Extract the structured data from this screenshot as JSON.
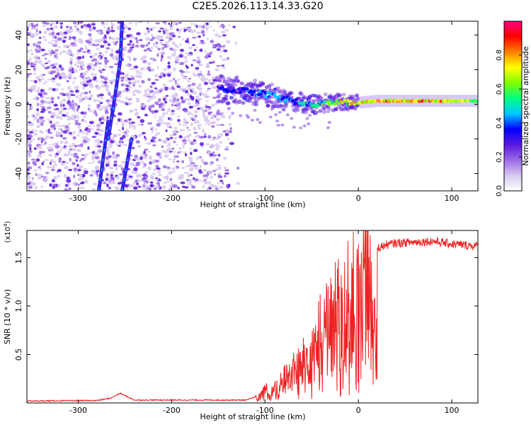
{
  "title": "C2E5.2026.113.14.33.G20",
  "chart_data": [
    {
      "type": "heatmap",
      "xlabel": "Height of straight line (km)",
      "ylabel": "Frequency (Hz)",
      "xlim": [
        -355,
        128
      ],
      "ylim": [
        -50,
        48
      ],
      "x_ticks": [
        -300,
        -200,
        -100,
        0,
        100
      ],
      "y_ticks": [
        -40,
        -20,
        0,
        20,
        40
      ],
      "colorbar": {
        "label": "Normalized spectral amplitude",
        "range": [
          0,
          1
        ],
        "ticks": [
          0.0,
          0.2,
          0.4,
          0.6,
          0.8
        ],
        "tick_labels": [
          "0.0",
          "0.2",
          "0.4",
          "0.6",
          "0.8"
        ],
        "colors": [
          "#ffffff",
          "#d8c8f0",
          "#9b6ae8",
          "#5a18e0",
          "#0000ff",
          "#00c8ff",
          "#00ff80",
          "#80ff00",
          "#ffff00",
          "#ff8000",
          "#ff0000",
          "#ff0080"
        ]
      },
      "features": [
        {
          "name": "noise-scatter",
          "x_range": [
            -355,
            -125
          ],
          "y_range": [
            -50,
            48
          ],
          "amplitude": 0.15
        },
        {
          "name": "diagonal-trace-upper",
          "x": [
            -268,
            -262,
            -255,
            -253
          ],
          "y": [
            -20,
            0,
            25,
            48
          ],
          "amplitude": 0.3
        },
        {
          "name": "diagonal-trace-lower",
          "x": [
            -278,
            -268
          ],
          "y": [
            -50,
            -10
          ],
          "amplitude": 0.25
        },
        {
          "name": "diagonal-trace-right",
          "x": [
            -253,
            -243
          ],
          "y": [
            -50,
            -20
          ],
          "amplitude": 0.25
        },
        {
          "name": "signal-band",
          "x": [
            -150,
            -125,
            -100,
            -80,
            -60,
            -45,
            -30,
            -15,
            0,
            20,
            50,
            80,
            110,
            128
          ],
          "y": [
            9,
            8,
            6,
            3,
            1,
            0,
            1,
            1,
            1,
            2,
            2,
            2,
            2,
            2
          ],
          "amplitude": [
            0.4,
            0.45,
            0.5,
            0.5,
            0.55,
            0.6,
            0.75,
            0.8,
            0.85,
            0.85,
            0.9,
            0.9,
            0.8,
            0.7
          ]
        }
      ]
    },
    {
      "type": "line",
      "xlabel": "Height of straight line (km)",
      "ylabel": "SNR (10 * v/v)",
      "y_exponent_label": "(x10",
      "y_exponent_power": "4",
      "y_exponent_close": ")",
      "xlim": [
        -355,
        128
      ],
      "ylim": [
        0,
        1.78
      ],
      "x_ticks": [
        -300,
        -200,
        -100,
        0,
        100
      ],
      "y_ticks": [
        0.5,
        1.0,
        1.5
      ],
      "y_tick_labels": [
        "0.5",
        "1.0",
        "1.5"
      ],
      "color": "#ee2222",
      "envelope": {
        "x": [
          -355,
          -280,
          -265,
          -255,
          -240,
          -120,
          -105,
          -100,
          -95,
          -80,
          -60,
          -50,
          -40,
          -30,
          -20,
          -15,
          -10,
          0,
          10,
          20,
          30,
          40,
          60,
          80,
          100,
          128
        ],
        "y": [
          0.02,
          0.025,
          0.05,
          0.1,
          0.03,
          0.03,
          0.08,
          0.2,
          0.1,
          0.3,
          0.5,
          0.7,
          0.9,
          1.1,
          1.2,
          1.25,
          1.3,
          1.45,
          1.55,
          1.6,
          1.63,
          1.65,
          1.66,
          1.67,
          1.64,
          1.62
        ]
      }
    }
  ]
}
